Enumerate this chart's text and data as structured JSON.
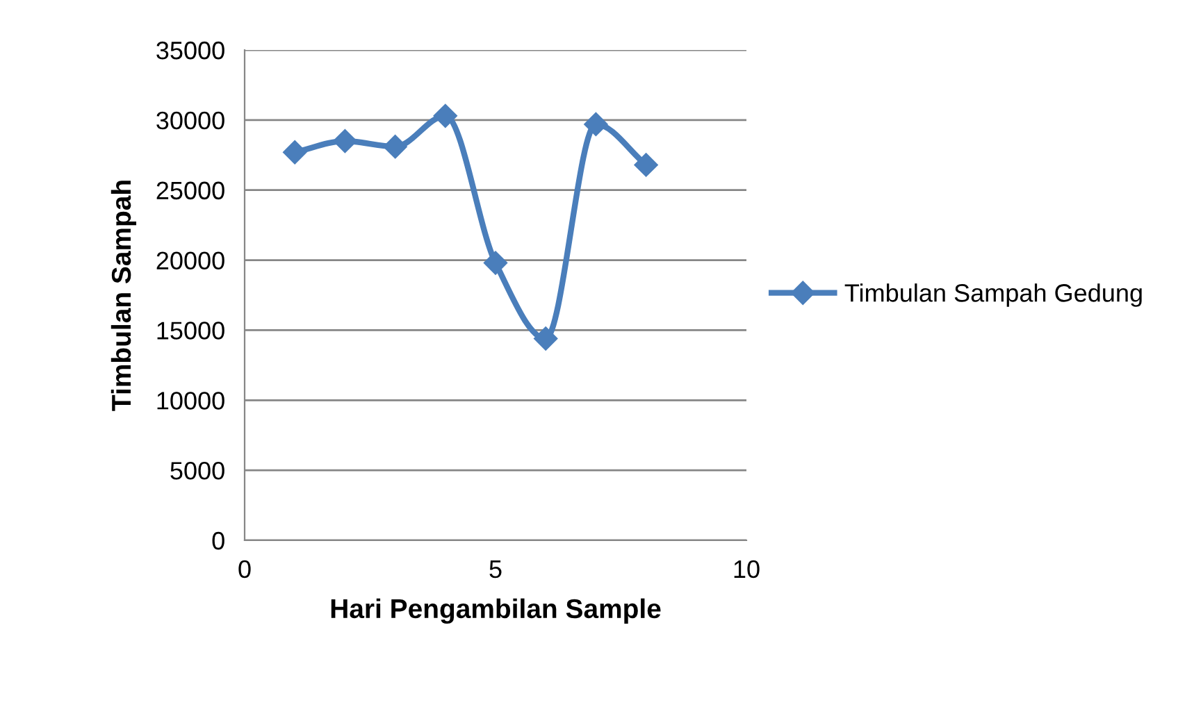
{
  "chart_data": {
    "type": "line",
    "xlabel": "Hari Pengambilan Sample",
    "ylabel": "Timbulan Sampah",
    "x": [
      1,
      2,
      3,
      4,
      5,
      6,
      7,
      8
    ],
    "series": [
      {
        "name": "Timbulan Sampah Gedung",
        "color": "#4a7ebb",
        "values": [
          27700,
          28500,
          28100,
          30300,
          19800,
          14400,
          29700,
          26800
        ]
      }
    ],
    "xlim": [
      0,
      10
    ],
    "xticks": [
      0,
      5,
      10
    ],
    "ylim": [
      0,
      35000
    ],
    "yticks": [
      0,
      5000,
      10000,
      15000,
      20000,
      25000,
      30000,
      35000
    ],
    "grid": "y",
    "legend": "right",
    "marker": "diamond",
    "line_style": "solid"
  }
}
